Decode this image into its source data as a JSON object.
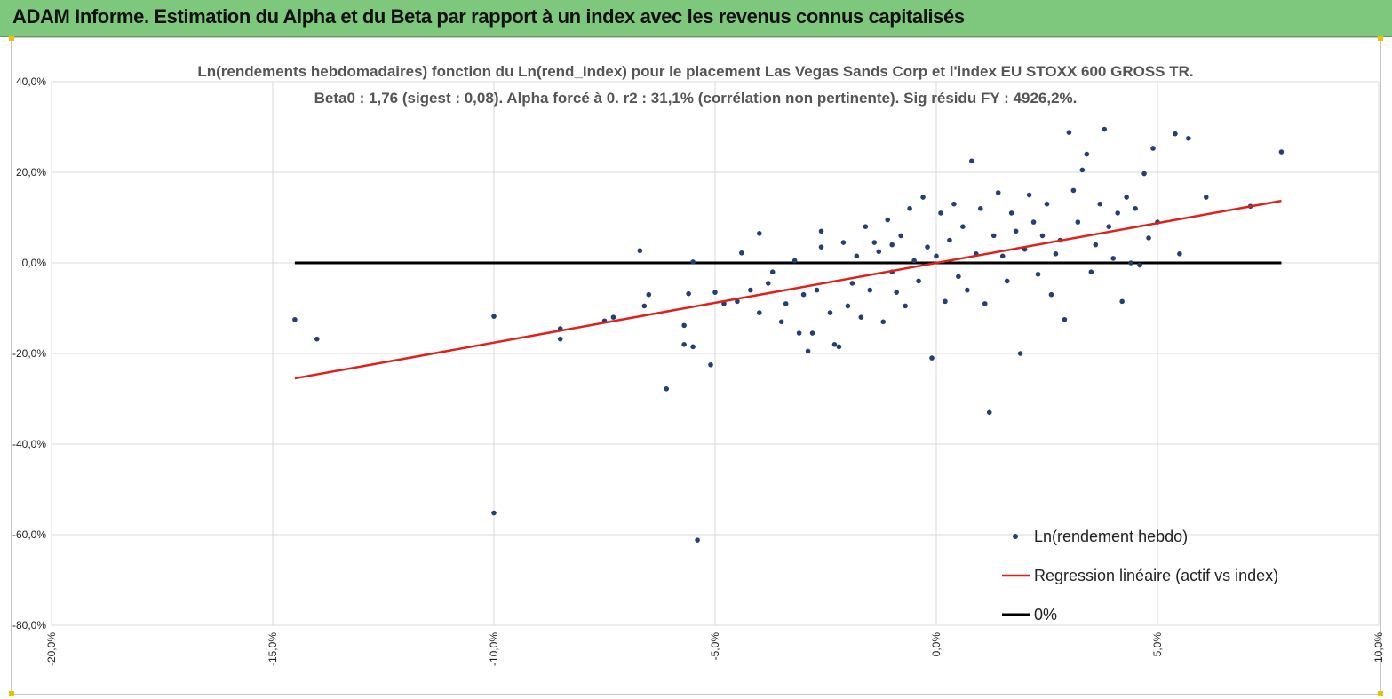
{
  "banner": {
    "title": "ADAM Informe. Estimation du Alpha et du Beta par rapport à un index avec les revenus connus capitalisés"
  },
  "colors": {
    "banner_bg": "#7ec87e",
    "points": "#243f73",
    "regression": "#e0201a",
    "zero_line": "#000000",
    "grid": "#d9d9d9"
  },
  "chart_data": {
    "type": "scatter",
    "title_line1": "Ln(rendements hebdomadaires) fonction du Ln(rend_Index) pour le placement Las Vegas Sands Corp et l'index EU STOXX 600 GROSS TR.",
    "title_line2": "Beta0 : 1,76 (sigest : 0,08). Alpha forcé à 0. r2 : 31,1% (corrélation non pertinente). Sig résidu FY : 4926,2%.",
    "xlim": [
      -0.2,
      0.1
    ],
    "ylim": [
      -0.8,
      0.4
    ],
    "x_ticks": [
      -0.2,
      -0.15,
      -0.1,
      -0.05,
      0.0,
      0.05,
      0.1
    ],
    "x_tick_labels": [
      "-20,0%",
      "-15,0%",
      "-10,0%",
      "-5,0%",
      "0,0%",
      "5,0%",
      "10,0%"
    ],
    "y_ticks": [
      0.4,
      0.2,
      0.0,
      -0.2,
      -0.4,
      -0.6,
      -0.8
    ],
    "y_tick_labels": [
      "40,0%",
      "20,0%",
      "0,0%",
      "-20,0%",
      "-40,0%",
      "-60,0%",
      "-80,0%"
    ],
    "grid": "vertical and horizontal",
    "legend_position": "bottom-right",
    "series": [
      {
        "name": "Ln(rendement hebdo)",
        "kind": "scatter",
        "points": [
          [
            -0.145,
            -0.125
          ],
          [
            -0.14,
            -0.168
          ],
          [
            -0.1,
            -0.118
          ],
          [
            -0.1,
            -0.552
          ],
          [
            -0.085,
            -0.168
          ],
          [
            -0.085,
            -0.145
          ],
          [
            -0.075,
            -0.128
          ],
          [
            -0.073,
            -0.12
          ],
          [
            -0.067,
            0.027
          ],
          [
            -0.066,
            -0.095
          ],
          [
            -0.065,
            -0.07
          ],
          [
            -0.061,
            -0.278
          ],
          [
            -0.057,
            -0.18
          ],
          [
            -0.055,
            -0.185
          ],
          [
            -0.055,
            0.002
          ],
          [
            -0.054,
            -0.612
          ],
          [
            -0.051,
            -0.225
          ],
          [
            -0.05,
            -0.065
          ],
          [
            -0.057,
            -0.138
          ],
          [
            -0.056,
            -0.068
          ],
          [
            -0.048,
            -0.09
          ],
          [
            -0.045,
            -0.085
          ],
          [
            -0.044,
            0.022
          ],
          [
            -0.042,
            -0.06
          ],
          [
            -0.04,
            0.065
          ],
          [
            -0.04,
            -0.11
          ],
          [
            -0.038,
            -0.045
          ],
          [
            -0.037,
            -0.02
          ],
          [
            -0.035,
            -0.13
          ],
          [
            -0.034,
            -0.09
          ],
          [
            -0.032,
            0.005
          ],
          [
            -0.031,
            -0.155
          ],
          [
            -0.03,
            -0.07
          ],
          [
            -0.029,
            -0.195
          ],
          [
            -0.028,
            -0.155
          ],
          [
            -0.027,
            -0.06
          ],
          [
            -0.026,
            0.035
          ],
          [
            -0.026,
            0.07
          ],
          [
            -0.024,
            -0.11
          ],
          [
            -0.023,
            -0.18
          ],
          [
            -0.022,
            -0.185
          ],
          [
            -0.021,
            0.045
          ],
          [
            -0.02,
            -0.095
          ],
          [
            -0.019,
            -0.045
          ],
          [
            -0.018,
            0.015
          ],
          [
            -0.017,
            -0.12
          ],
          [
            -0.016,
            0.08
          ],
          [
            -0.015,
            -0.06
          ],
          [
            -0.014,
            0.045
          ],
          [
            -0.013,
            0.025
          ],
          [
            -0.012,
            -0.13
          ],
          [
            -0.011,
            0.095
          ],
          [
            -0.01,
            -0.02
          ],
          [
            -0.01,
            0.04
          ],
          [
            -0.009,
            -0.065
          ],
          [
            -0.008,
            0.06
          ],
          [
            -0.007,
            -0.095
          ],
          [
            -0.006,
            0.12
          ],
          [
            -0.005,
            0.005
          ],
          [
            -0.004,
            -0.04
          ],
          [
            -0.003,
            0.145
          ],
          [
            -0.002,
            0.035
          ],
          [
            -0.001,
            -0.21
          ],
          [
            0.0,
            0.015
          ],
          [
            0.001,
            0.11
          ],
          [
            0.002,
            -0.085
          ],
          [
            0.003,
            0.05
          ],
          [
            0.004,
            0.13
          ],
          [
            0.005,
            -0.03
          ],
          [
            0.006,
            0.08
          ],
          [
            0.007,
            -0.06
          ],
          [
            0.008,
            0.225
          ],
          [
            0.009,
            0.02
          ],
          [
            0.01,
            0.12
          ],
          [
            0.011,
            -0.09
          ],
          [
            0.012,
            -0.33
          ],
          [
            0.013,
            0.06
          ],
          [
            0.014,
            0.155
          ],
          [
            0.015,
            0.015
          ],
          [
            0.016,
            -0.04
          ],
          [
            0.017,
            0.11
          ],
          [
            0.018,
            0.07
          ],
          [
            0.019,
            -0.2
          ],
          [
            0.02,
            0.03
          ],
          [
            0.021,
            0.15
          ],
          [
            0.022,
            0.09
          ],
          [
            0.023,
            -0.025
          ],
          [
            0.024,
            0.06
          ],
          [
            0.025,
            0.13
          ],
          [
            0.026,
            -0.07
          ],
          [
            0.027,
            0.02
          ],
          [
            0.028,
            0.05
          ],
          [
            0.029,
            -0.125
          ],
          [
            0.03,
            0.288
          ],
          [
            0.031,
            0.16
          ],
          [
            0.032,
            0.09
          ],
          [
            0.033,
            0.205
          ],
          [
            0.034,
            0.24
          ],
          [
            0.035,
            -0.02
          ],
          [
            0.036,
            0.04
          ],
          [
            0.037,
            0.13
          ],
          [
            0.038,
            0.295
          ],
          [
            0.039,
            0.08
          ],
          [
            0.04,
            0.01
          ],
          [
            0.041,
            0.11
          ],
          [
            0.042,
            -0.085
          ],
          [
            0.043,
            0.145
          ],
          [
            0.044,
            0.0
          ],
          [
            0.045,
            0.12
          ],
          [
            0.046,
            -0.005
          ],
          [
            0.047,
            0.197
          ],
          [
            0.048,
            0.055
          ],
          [
            0.049,
            0.253
          ],
          [
            0.05,
            0.09
          ],
          [
            0.054,
            0.285
          ],
          [
            0.055,
            0.02
          ],
          [
            0.057,
            0.275
          ],
          [
            0.061,
            0.145
          ],
          [
            0.071,
            0.125
          ],
          [
            0.078,
            0.245
          ]
        ]
      },
      {
        "name": "Regression linéaire (actif vs index)",
        "kind": "line",
        "points": [
          [
            -0.145,
            -0.255
          ],
          [
            0.078,
            0.137
          ]
        ]
      },
      {
        "name": "0%",
        "kind": "line",
        "points": [
          [
            -0.145,
            0.0
          ],
          [
            0.078,
            0.0
          ]
        ]
      }
    ]
  }
}
